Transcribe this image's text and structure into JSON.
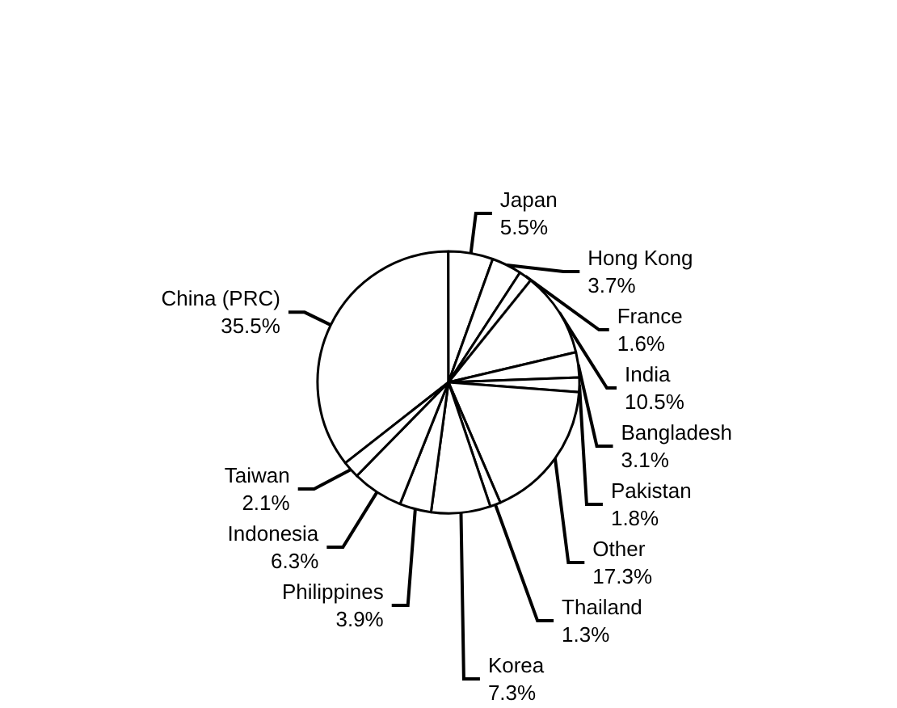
{
  "chart_data": {
    "type": "pie",
    "categories": [
      "China (PRC)",
      "Japan",
      "Hong Kong",
      "France",
      "India",
      "Bangladesh",
      "Pakistan",
      "Other",
      "Thailand",
      "Korea",
      "Philippines",
      "Indonesia",
      "Taiwan"
    ],
    "values": [
      35.5,
      5.5,
      3.7,
      1.6,
      10.5,
      3.1,
      1.8,
      17.3,
      1.3,
      7.3,
      3.9,
      6.3,
      2.1
    ],
    "value_labels": [
      "35.5%",
      "5.5%",
      "3.7%",
      "1.6%",
      "10.5%",
      "3.1%",
      "1.8%",
      "17.3%",
      "1.3%",
      "7.3%",
      "3.9%",
      "6.3%",
      "2.1%"
    ],
    "colors": [
      "#ffffff",
      "#ffffff",
      "#ffffff",
      "#ffffff",
      "#ffffff",
      "#ffffff",
      "#ffffff",
      "#ffffff",
      "#ffffff",
      "#ffffff",
      "#ffffff",
      "#ffffff",
      "#ffffff"
    ],
    "legend": false
  }
}
